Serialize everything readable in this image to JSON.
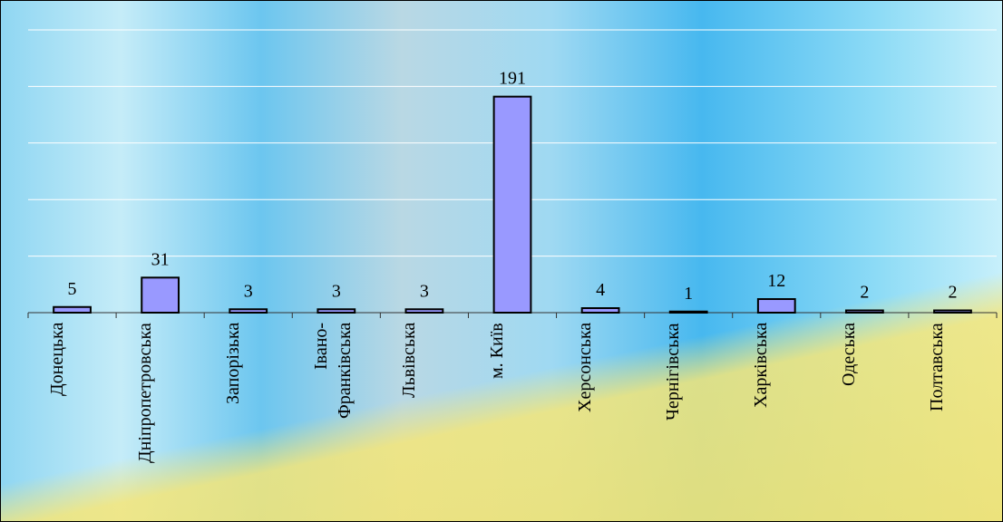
{
  "chart_data": {
    "type": "bar",
    "categories": [
      "Донецька",
      "Дніпропетровська",
      "Запорізька",
      "Івано-\nФранківська",
      "Львівська",
      "м. Київ",
      "Херсонська",
      "Чернігівська",
      "Харківська",
      "Одеська",
      "Полтавська"
    ],
    "values": [
      5,
      31,
      3,
      3,
      3,
      191,
      4,
      1,
      12,
      2,
      2
    ],
    "color": "#9999ff",
    "ylim": [
      0,
      250
    ],
    "yticks": [
      0,
      50,
      100,
      150,
      200,
      250
    ],
    "grid": true
  }
}
